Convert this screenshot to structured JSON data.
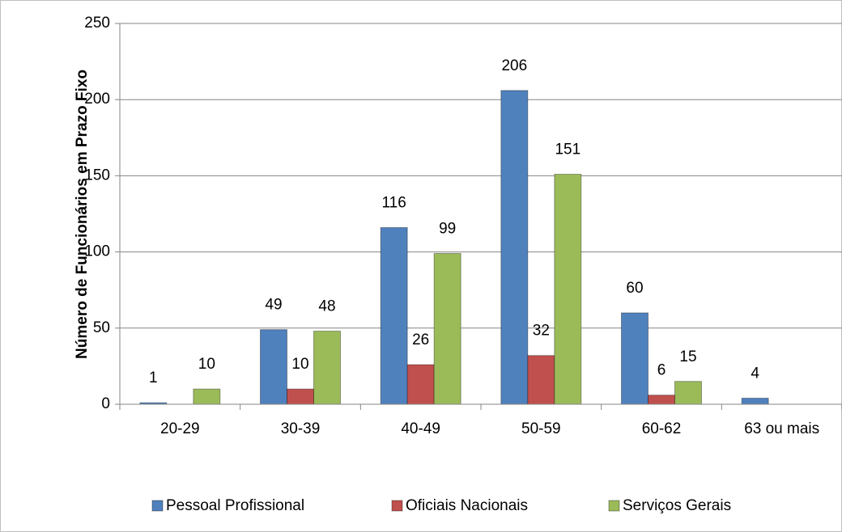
{
  "chart_data": {
    "type": "bar",
    "y_label": "Número de Funcionários em Prazo Fixo",
    "categories": [
      "20-29",
      "30-39",
      "40-49",
      "50-59",
      "60-62",
      "63 ou mais"
    ],
    "series": [
      {
        "name": "Pessoal Profissional",
        "color": "#4f81bd",
        "values": [
          1,
          49,
          116,
          206,
          60,
          4
        ]
      },
      {
        "name": "Oficiais Nacionais",
        "color": "#c0504d",
        "values": [
          null,
          10,
          26,
          32,
          6,
          null
        ]
      },
      {
        "name": "Serviços Gerais",
        "color": "#9bbb59",
        "values": [
          10,
          48,
          99,
          151,
          15,
          null
        ]
      }
    ],
    "ylim": [
      0,
      250
    ],
    "yticks": [
      0,
      50,
      100,
      150,
      200,
      250
    ],
    "grid": true,
    "legend": "bottom"
  }
}
